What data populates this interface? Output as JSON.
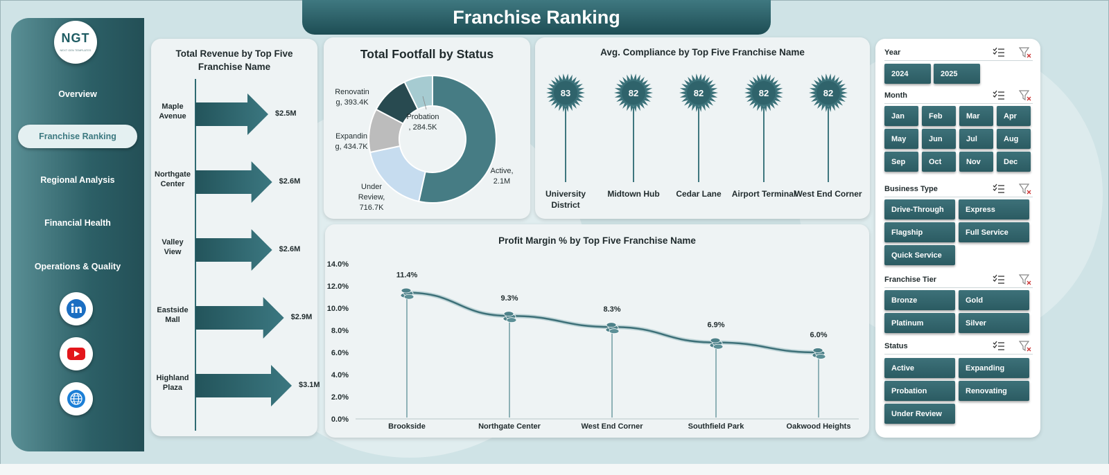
{
  "title": "Franchise Ranking",
  "logo": {
    "text": "NGT",
    "subtitle": "NEXT GEN TEMPLATES"
  },
  "nav": [
    {
      "label": "Overview",
      "active": false
    },
    {
      "label": "Franchise Ranking",
      "active": true
    },
    {
      "label": "Regional Analysis",
      "active": false
    },
    {
      "label": "Financial Health",
      "active": false
    },
    {
      "label": "Operations & Quality",
      "active": false
    }
  ],
  "social": [
    "linkedin-icon",
    "youtube-icon",
    "website-globe-icon"
  ],
  "colors": {
    "teal_dark": "#2b5b62",
    "teal_mid": "#467c84",
    "accent_light": "#c6dcef",
    "bg": "#cfe3e6"
  },
  "revenue_chart": {
    "title_line1": "Total Revenue by Top Five",
    "title_line2": "Franchise Name",
    "items": [
      {
        "name_line1": "Maple",
        "name_line2": "Avenue",
        "value": 2.5,
        "label": "$2.5M"
      },
      {
        "name_line1": "Northgate",
        "name_line2": "Center",
        "value": 2.6,
        "label": "$2.6M"
      },
      {
        "name_line1": "Valley",
        "name_line2": "View",
        "value": 2.6,
        "label": "$2.6M"
      },
      {
        "name_line1": "Eastside",
        "name_line2": "Mall",
        "value": 2.9,
        "label": "$2.9M"
      },
      {
        "name_line1": "Highland",
        "name_line2": "Plaza",
        "value": 3.1,
        "label": "$3.1M"
      }
    ]
  },
  "footfall_chart": {
    "title": "Total Footfall by Status",
    "slices": [
      {
        "name": "Active",
        "value": 2100000,
        "color": "#467c84",
        "label_line1": "Active,",
        "label_line2": "2.1M"
      },
      {
        "name": "Under Review",
        "value": 716700,
        "color": "#c6dcef",
        "label_line1": "Under",
        "label_line2": "Review,",
        "label_line3": "716.7K"
      },
      {
        "name": "Expanding",
        "value": 434700,
        "color": "#bcbcbc",
        "label_line1": "Expandin",
        "label_line2": "g, 434.7K"
      },
      {
        "name": "Renovating",
        "value": 393400,
        "color": "#284a50",
        "label_line1": "Renovatin",
        "label_line2": "g, 393.4K"
      },
      {
        "name": "Probation",
        "value": 284500,
        "color": "#a6cbd1",
        "label_line1": "Probation",
        "label_line2": ", 284.5K"
      }
    ]
  },
  "compliance_chart": {
    "title": "Avg. Compliance by Top Five Franchise Name",
    "items": [
      {
        "name_line1": "University",
        "name_line2": "District",
        "value": 83,
        "label": "83"
      },
      {
        "name_line1": "Midtown Hub",
        "name_line2": "",
        "value": 82,
        "label": "82"
      },
      {
        "name_line1": "Cedar Lane",
        "name_line2": "",
        "value": 82,
        "label": "82"
      },
      {
        "name_line1": "Airport Terminal",
        "name_line2": "",
        "value": 82,
        "label": "82"
      },
      {
        "name_line1": "West End Corner",
        "name_line2": "",
        "value": 82,
        "label": "82"
      }
    ]
  },
  "chart_data": {
    "type": "line",
    "title": "Profit Margin % by Top Five Franchise Name",
    "categories": [
      "Brookside",
      "Northgate Center",
      "West End Corner",
      "Southfield Park",
      "Oakwood Heights"
    ],
    "series": [
      {
        "values": [
          11.4,
          9.3,
          8.3,
          6.9,
          6.0
        ]
      }
    ],
    "value_labels": [
      "11.4%",
      "9.3%",
      "8.3%",
      "6.9%",
      "6.0%"
    ],
    "yticks": [
      "0.0%",
      "2.0%",
      "4.0%",
      "6.0%",
      "8.0%",
      "10.0%",
      "12.0%",
      "14.0%"
    ],
    "ylim": [
      0,
      14
    ],
    "xlabel": "",
    "ylabel": "",
    "grid": false,
    "marker": "coin-stack"
  },
  "filters": [
    {
      "title": "Year",
      "cols": 2,
      "wide": false,
      "options": [
        "2024",
        "2025"
      ]
    },
    {
      "title": "Month",
      "cols": 4,
      "wide": false,
      "options": [
        "Jan",
        "Feb",
        "Mar",
        "Apr",
        "May",
        "Jun",
        "Jul",
        "Aug",
        "Sep",
        "Oct",
        "Nov",
        "Dec"
      ]
    },
    {
      "title": "Business Type",
      "cols": 2,
      "wide": true,
      "options": [
        "Drive-Through",
        "Express",
        "Flagship",
        "Full Service",
        "Quick Service"
      ]
    },
    {
      "title": "Franchise Tier",
      "cols": 2,
      "wide": true,
      "options": [
        "Bronze",
        "Gold",
        "Platinum",
        "Silver"
      ]
    },
    {
      "title": "Status",
      "cols": 2,
      "wide": true,
      "options": [
        "Active",
        "Expanding",
        "Probation",
        "Renovating",
        "Under Review"
      ]
    }
  ]
}
